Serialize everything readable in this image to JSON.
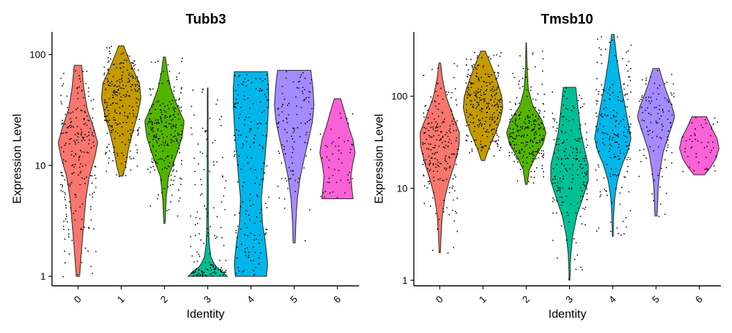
{
  "chart_data": [
    {
      "type": "violin",
      "title": "Tubb3",
      "xlabel": "Identity",
      "ylabel": "Expression Level",
      "yscale": "log10",
      "ylim": [
        0.82,
        160
      ],
      "yticks": [
        1,
        10,
        100
      ],
      "ytick_labels": [
        "1",
        "10",
        "100"
      ],
      "categories": [
        "0",
        "1",
        "2",
        "3",
        "4",
        "5",
        "6"
      ],
      "colors": [
        "#F8766D",
        "#C49A00",
        "#53B400",
        "#00C094",
        "#00B6EB",
        "#A58AFF",
        "#FB61D7"
      ],
      "violins": [
        {
          "cluster": "0",
          "min": 1,
          "max": 80,
          "points": 220,
          "profile": [
            [
              1,
              0.08
            ],
            [
              1.5,
              0.15
            ],
            [
              2,
              0.2
            ],
            [
              3,
              0.28
            ],
            [
              5,
              0.38
            ],
            [
              8,
              0.55
            ],
            [
              12,
              0.82
            ],
            [
              16,
              0.95
            ],
            [
              22,
              0.75
            ],
            [
              32,
              0.45
            ],
            [
              50,
              0.28
            ],
            [
              80,
              0.18
            ]
          ]
        },
        {
          "cluster": "1",
          "min": 8,
          "max": 120,
          "points": 260,
          "profile": [
            [
              8,
              0.08
            ],
            [
              10,
              0.22
            ],
            [
              14,
              0.35
            ],
            [
              20,
              0.55
            ],
            [
              28,
              0.78
            ],
            [
              40,
              0.95
            ],
            [
              55,
              0.88
            ],
            [
              75,
              0.55
            ],
            [
              100,
              0.28
            ],
            [
              120,
              0.12
            ]
          ]
        },
        {
          "cluster": "2",
          "min": 3,
          "max": 95,
          "points": 240,
          "profile": [
            [
              3,
              0.03
            ],
            [
              5,
              0.08
            ],
            [
              8,
              0.2
            ],
            [
              12,
              0.55
            ],
            [
              18,
              0.85
            ],
            [
              25,
              0.95
            ],
            [
              35,
              0.6
            ],
            [
              50,
              0.3
            ],
            [
              70,
              0.14
            ],
            [
              95,
              0.05
            ]
          ]
        },
        {
          "cluster": "3",
          "min": 1,
          "max": 50,
          "points": 150,
          "profile": [
            [
              1,
              0.95
            ],
            [
              1.1,
              0.7
            ],
            [
              1.25,
              0.35
            ],
            [
              1.5,
              0.15
            ],
            [
              2,
              0.07
            ],
            [
              3,
              0.04
            ],
            [
              5,
              0.03
            ],
            [
              10,
              0.025
            ],
            [
              20,
              0.02
            ],
            [
              50,
              0.015
            ]
          ]
        },
        {
          "cluster": "4",
          "min": 1,
          "max": 70,
          "points": 180,
          "profile": [
            [
              1,
              0.75
            ],
            [
              1.3,
              0.8
            ],
            [
              2,
              0.7
            ],
            [
              3,
              0.55
            ],
            [
              5,
              0.5
            ],
            [
              8,
              0.6
            ],
            [
              12,
              0.68
            ],
            [
              20,
              0.78
            ],
            [
              35,
              0.85
            ],
            [
              50,
              0.85
            ],
            [
              70,
              0.8
            ]
          ]
        },
        {
          "cluster": "5",
          "min": 2,
          "max": 72,
          "points": 110,
          "profile": [
            [
              2,
              0.05
            ],
            [
              3,
              0.08
            ],
            [
              5,
              0.15
            ],
            [
              8,
              0.3
            ],
            [
              12,
              0.5
            ],
            [
              18,
              0.72
            ],
            [
              25,
              0.88
            ],
            [
              35,
              0.95
            ],
            [
              50,
              0.9
            ],
            [
              72,
              0.8
            ]
          ]
        },
        {
          "cluster": "6",
          "min": 5,
          "max": 40,
          "points": 50,
          "profile": [
            [
              5,
              0.75
            ],
            [
              6,
              0.7
            ],
            [
              8,
              0.65
            ],
            [
              10,
              0.72
            ],
            [
              13,
              0.85
            ],
            [
              17,
              0.75
            ],
            [
              22,
              0.55
            ],
            [
              30,
              0.35
            ],
            [
              40,
              0.15
            ]
          ]
        }
      ]
    },
    {
      "type": "violin",
      "title": "Tmsb10",
      "xlabel": "Identity",
      "ylabel": "Expression Level",
      "yscale": "log10",
      "ylim": [
        0.87,
        500
      ],
      "yticks": [
        1,
        10,
        100
      ],
      "ytick_labels": [
        "1",
        "10",
        "100"
      ],
      "categories": [
        "0",
        "1",
        "2",
        "3",
        "4",
        "5",
        "6"
      ],
      "colors": [
        "#F8766D",
        "#C49A00",
        "#53B400",
        "#00C094",
        "#00B6EB",
        "#A58AFF",
        "#FB61D7"
      ],
      "violins": [
        {
          "cluster": "0",
          "min": 2,
          "max": 230,
          "points": 220,
          "profile": [
            [
              2,
              0.03
            ],
            [
              3,
              0.06
            ],
            [
              5,
              0.12
            ],
            [
              8,
              0.25
            ],
            [
              12,
              0.45
            ],
            [
              18,
              0.7
            ],
            [
              28,
              0.92
            ],
            [
              40,
              0.95
            ],
            [
              60,
              0.65
            ],
            [
              100,
              0.3
            ],
            [
              160,
              0.12
            ],
            [
              230,
              0.04
            ]
          ]
        },
        {
          "cluster": "1",
          "min": 20,
          "max": 310,
          "points": 260,
          "profile": [
            [
              20,
              0.08
            ],
            [
              28,
              0.3
            ],
            [
              40,
              0.6
            ],
            [
              55,
              0.82
            ],
            [
              75,
              0.95
            ],
            [
              100,
              0.9
            ],
            [
              140,
              0.7
            ],
            [
              200,
              0.45
            ],
            [
              260,
              0.25
            ],
            [
              310,
              0.1
            ]
          ]
        },
        {
          "cluster": "2",
          "min": 11,
          "max": 380,
          "points": 240,
          "profile": [
            [
              11,
              0.04
            ],
            [
              16,
              0.15
            ],
            [
              22,
              0.45
            ],
            [
              30,
              0.8
            ],
            [
              40,
              0.95
            ],
            [
              55,
              0.75
            ],
            [
              80,
              0.3
            ],
            [
              120,
              0.1
            ],
            [
              200,
              0.04
            ],
            [
              380,
              0.01
            ]
          ]
        },
        {
          "cluster": "3",
          "min": 1,
          "max": 125,
          "points": 200,
          "profile": [
            [
              1,
              0.02
            ],
            [
              1.5,
              0.04
            ],
            [
              2,
              0.07
            ],
            [
              3,
              0.15
            ],
            [
              5,
              0.35
            ],
            [
              8,
              0.65
            ],
            [
              12,
              0.9
            ],
            [
              18,
              0.9
            ],
            [
              25,
              0.75
            ],
            [
              40,
              0.55
            ],
            [
              70,
              0.42
            ],
            [
              125,
              0.3
            ]
          ]
        },
        {
          "cluster": "4",
          "min": 3,
          "max": 470,
          "points": 200,
          "profile": [
            [
              3,
              0.02
            ],
            [
              5,
              0.04
            ],
            [
              8,
              0.1
            ],
            [
              12,
              0.22
            ],
            [
              18,
              0.45
            ],
            [
              25,
              0.72
            ],
            [
              35,
              0.88
            ],
            [
              50,
              0.75
            ],
            [
              80,
              0.58
            ],
            [
              130,
              0.4
            ],
            [
              250,
              0.2
            ],
            [
              470,
              0.06
            ]
          ]
        },
        {
          "cluster": "5",
          "min": 5,
          "max": 200,
          "points": 110,
          "profile": [
            [
              5,
              0.05
            ],
            [
              7,
              0.08
            ],
            [
              10,
              0.1
            ],
            [
              15,
              0.18
            ],
            [
              25,
              0.35
            ],
            [
              40,
              0.65
            ],
            [
              60,
              0.9
            ],
            [
              80,
              0.75
            ],
            [
              120,
              0.45
            ],
            [
              200,
              0.15
            ]
          ]
        },
        {
          "cluster": "6",
          "min": 14,
          "max": 60,
          "points": 50,
          "profile": [
            [
              14,
              0.25
            ],
            [
              17,
              0.55
            ],
            [
              21,
              0.8
            ],
            [
              27,
              0.95
            ],
            [
              35,
              0.85
            ],
            [
              45,
              0.6
            ],
            [
              60,
              0.35
            ]
          ]
        }
      ]
    }
  ]
}
